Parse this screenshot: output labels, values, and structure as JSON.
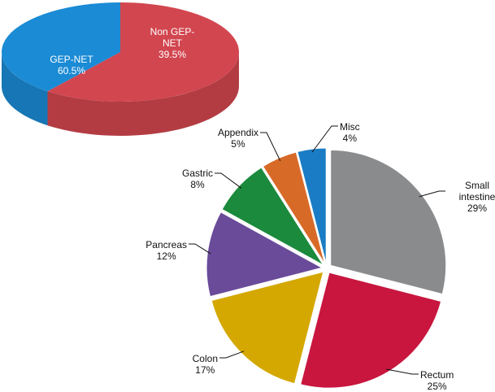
{
  "chart_data": [
    {
      "type": "pie",
      "three_d": true,
      "categories": [
        "GEP-NET",
        "Non GEP-NET"
      ],
      "values": [
        60.5,
        39.5
      ],
      "value_labels": [
        "60.5%",
        "39.5%"
      ],
      "colors": [
        "#d2464f",
        "#1b8bd5"
      ]
    },
    {
      "type": "pie",
      "exploded": true,
      "categories": [
        "Small intestine",
        "Rectum",
        "Colon",
        "Pancreas",
        "Gastric",
        "Appendix",
        "Misc"
      ],
      "values": [
        29,
        25,
        17,
        12,
        8,
        5,
        4
      ],
      "value_labels": [
        "29%",
        "25%",
        "17%",
        "12%",
        "8%",
        "5%",
        "4%"
      ],
      "colors": [
        "#8a8b8d",
        "#c8163e",
        "#d4a800",
        "#6a4b9a",
        "#1b8a3c",
        "#d86a28",
        "#1a7cc4"
      ]
    }
  ]
}
